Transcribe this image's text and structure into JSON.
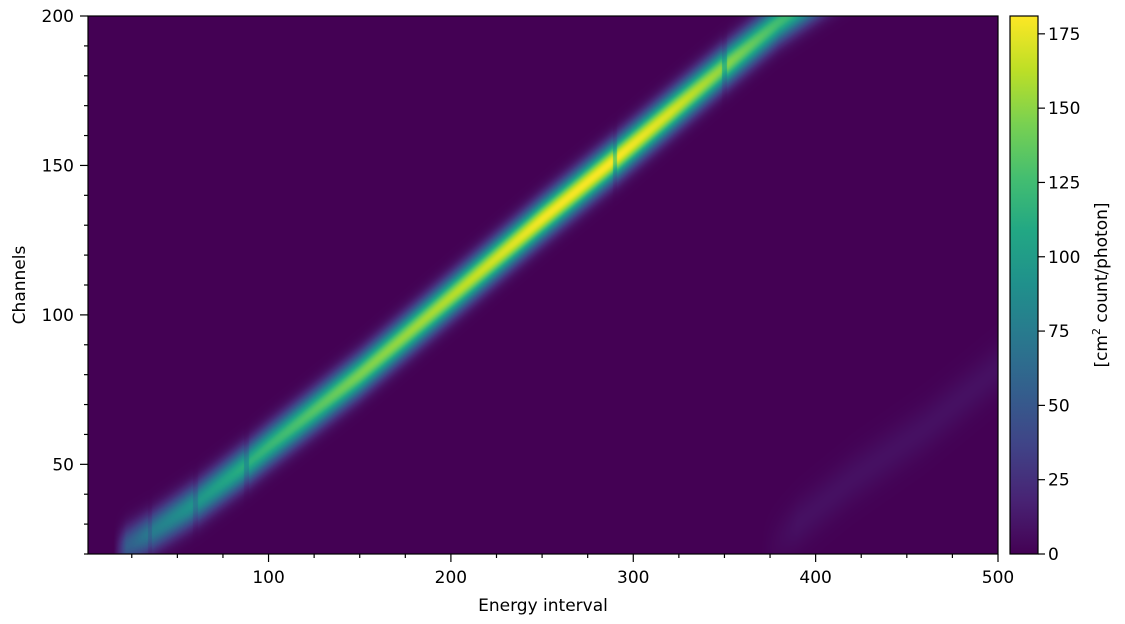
{
  "chart_data": {
    "type": "heatmap",
    "title": "",
    "xlabel": "Energy interval",
    "ylabel": "Channels",
    "xlim": [
      1,
      500
    ],
    "ylim": [
      20,
      200
    ],
    "x_ticks": [
      100,
      200,
      300,
      400,
      500
    ],
    "x_tick_labels": [
      "100",
      "200",
      "300",
      "400",
      "500"
    ],
    "y_ticks": [
      50,
      100,
      150,
      200
    ],
    "y_tick_labels": [
      "50",
      "100",
      "150",
      "200"
    ],
    "colorbar": {
      "label_prefix": "[cm",
      "label_superscript": "2",
      "label_suffix": " count/photon]",
      "range": [
        0,
        181
      ],
      "ticks": [
        0,
        25,
        50,
        75,
        100,
        125,
        150,
        175
      ],
      "tick_labels": [
        "0",
        "25",
        "50",
        "75",
        "100",
        "125",
        "150",
        "175"
      ],
      "colormap": "viridis"
    },
    "grid": false,
    "description_values": {
      "main_ridge": {
        "points": [
          [
            20,
            22
          ],
          [
            35,
            27
          ],
          [
            60,
            37
          ],
          [
            88,
            50
          ],
          [
            100,
            56
          ],
          [
            150,
            80
          ],
          [
            200,
            106
          ],
          [
            250,
            132
          ],
          [
            290,
            152
          ],
          [
            350,
            183
          ],
          [
            380,
            198
          ],
          [
            400,
            206
          ]
        ],
        "peak_values": [
          [
            20,
            50
          ],
          [
            35,
            75
          ],
          [
            60,
            95
          ],
          [
            88,
            115
          ],
          [
            150,
            145
          ],
          [
            200,
            160
          ],
          [
            250,
            178
          ],
          [
            290,
            180
          ],
          [
            320,
            170
          ],
          [
            350,
            150
          ],
          [
            380,
            125
          ],
          [
            400,
            110
          ]
        ]
      },
      "secondary_ridge": {
        "points": [
          [
            380,
            25
          ],
          [
            420,
            45
          ],
          [
            460,
            62
          ],
          [
            500,
            82
          ]
        ],
        "peak_value": 8
      },
      "edges_x": [
        35,
        60,
        88,
        290,
        350
      ]
    }
  }
}
